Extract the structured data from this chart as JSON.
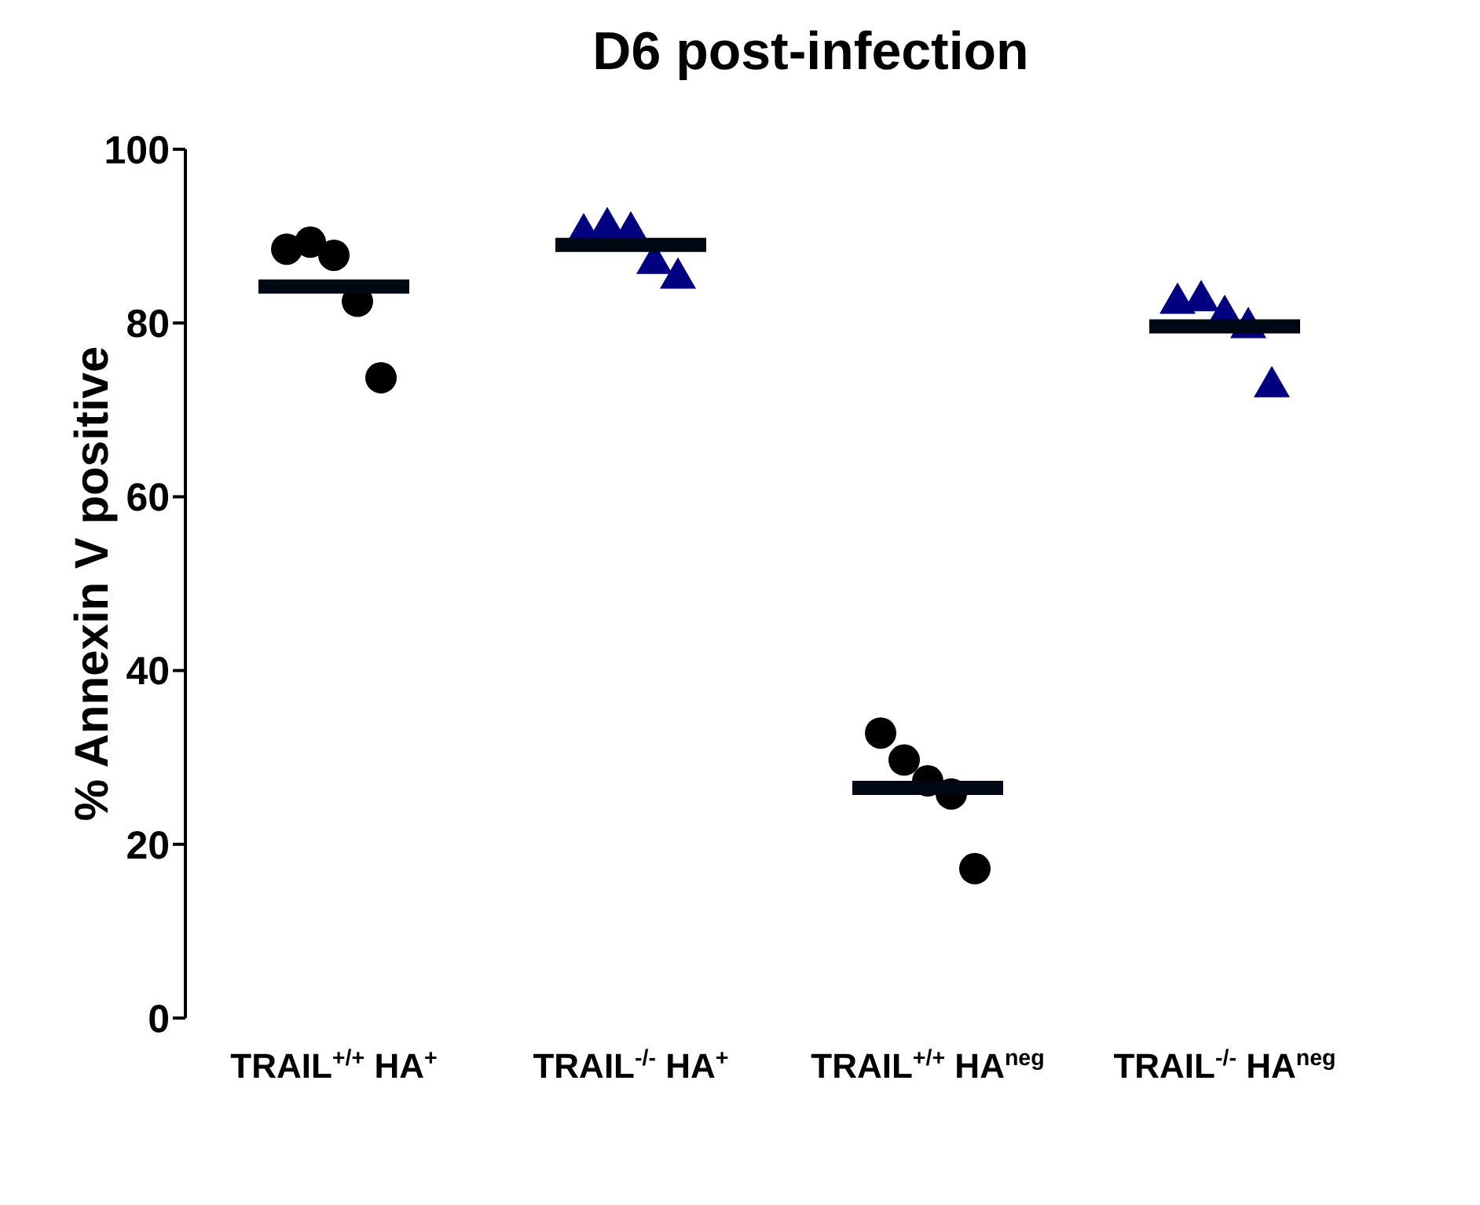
{
  "chart_data": {
    "type": "box",
    "title": "D6 post-infection",
    "ylabel": "% Annexin V positive",
    "categories": [
      "TRAIL$^{+/+}$ HA$^{+}$",
      "TRAIL$^{-/-}$ HA$^{+}$",
      "TRAIL$^{+/+}$ HA$^{neg}$",
      "TRAIL$^{-/-}$ HA$^{neg}$"
    ],
    "ylim": [
      0,
      100
    ],
    "yticks": [
      0,
      20,
      40,
      60,
      80,
      100
    ],
    "grid": false,
    "series": [
      {
        "type": "scatter",
        "marker": "circle",
        "color": "#000000",
        "x": [
          "TRAIL$^{+/+}$ HA$^{+}$",
          "TRAIL$^{+/+}$ HA$^{+}$",
          "TRAIL$^{+/+}$ HA$^{+}$",
          "TRAIL$^{+/+}$ HA$^{+}$",
          "TRAIL$^{+/+}$ HA$^{+}$",
          "TRAIL$^{+/+}$ HA$^{neg}$",
          "TRAIL$^{+/+}$ HA$^{neg}$",
          "TRAIL$^{+/+}$ HA$^{neg}$",
          "TRAIL$^{+/+}$ HA$^{neg}$",
          "TRAIL$^{+/+}$ HA$^{neg}$"
        ],
        "values": [
          88.5,
          89.3,
          87.8,
          82.5,
          73.7,
          32.8,
          29.7,
          27.3,
          25.8,
          17.2
        ]
      },
      {
        "type": "scatter",
        "marker": "triangle",
        "color": "#000080",
        "x": [
          "TRAIL$^{-/-}$ HA$^{+}$",
          "TRAIL$^{-/-}$ HA$^{+}$",
          "TRAIL$^{-/-}$ HA$^{+}$",
          "TRAIL$^{-/-}$ HA$^{+}$",
          "TRAIL$^{-/-}$ HA$^{+}$",
          "TRAIL$^{-/-}$ HA$^{neg}$",
          "TRAIL$^{-/-}$ HA$^{neg}$",
          "TRAIL$^{-/-}$ HA$^{neg}$",
          "TRAIL$^{-/-}$ HA$^{neg}$",
          "TRAIL$^{-/-}$ HA$^{neg}$"
        ],
        "values": [
          90.5,
          91.2,
          90.7,
          87.1,
          85.4,
          82.5,
          82.8,
          81.1,
          79.7,
          72.9
        ]
      },
      {
        "color": "#000814",
        "boxes": [
          {
            "low": 84.2,
            "q1": 84.2,
            "median": 84.2,
            "q3": 84.2,
            "high": 84.2
          },
          {
            "low": 89.0,
            "q1": 89.0,
            "median": 89.0,
            "q3": 89.0,
            "high": 89.0
          },
          {
            "low": 26.5,
            "q1": 26.5,
            "median": 26.5,
            "q3": 26.5,
            "high": 26.5
          },
          {
            "low": 79.6,
            "q1": 79.6,
            "median": 79.6,
            "q3": 79.6,
            "high": 79.6
          }
        ]
      }
    ]
  }
}
